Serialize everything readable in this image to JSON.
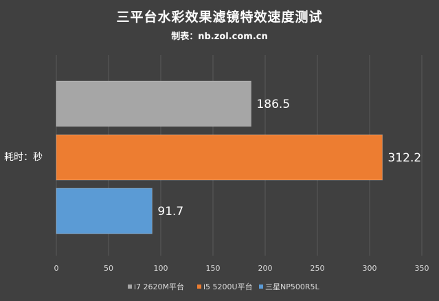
{
  "chart_data": {
    "type": "bar",
    "orientation": "horizontal",
    "title": "三平台水彩效果滤镜特效速度测试",
    "subtitle": "制表：nb.zol.com.cn",
    "categories": [
      "耗时：秒"
    ],
    "series": [
      {
        "name": "i7 2620M平台",
        "values": [
          186.5
        ],
        "color": "#a6a6a6"
      },
      {
        "name": "i5 5200U平台",
        "values": [
          312.2
        ],
        "color": "#ed7d31"
      },
      {
        "name": "三星NP500R5L",
        "values": [
          91.7
        ],
        "color": "#5b9bd5"
      }
    ],
    "xlim": [
      0,
      350
    ],
    "xticks": [
      "0",
      "50",
      "100",
      "150",
      "200",
      "250",
      "300",
      "350"
    ],
    "grid": true,
    "legend_position": "bottom"
  }
}
